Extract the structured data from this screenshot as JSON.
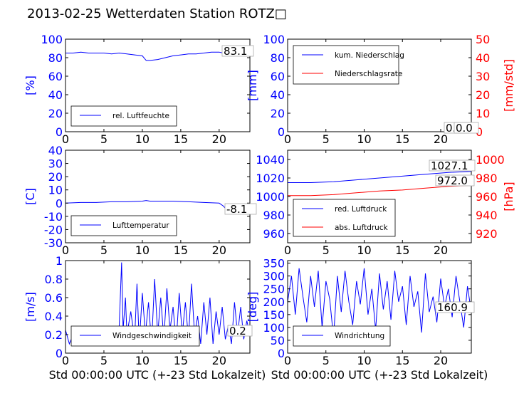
{
  "figure": {
    "title": "2013-02-25 Wetterdaten Station ROTZ",
    "title_glyph": "□",
    "colors": {
      "primary": "#0000ff",
      "secondary": "#ff0000",
      "axis": "#000000"
    },
    "xlabel": "Std 00:00:00 UTC (+-23 Std Lokalzeit)"
  },
  "chart_data": [
    {
      "id": "humidity",
      "type": "line",
      "ylabel": "[%]",
      "ylim": [
        0,
        100
      ],
      "yticks": [
        0,
        20,
        40,
        60,
        80,
        100
      ],
      "xlim": [
        0,
        24
      ],
      "xticks": [
        0,
        5,
        10,
        15,
        20
      ],
      "series": [
        {
          "name": "rel. Luftfeuchte",
          "color": "#0000ff",
          "x": [
            0,
            1,
            2,
            3,
            4,
            5,
            6,
            7,
            8,
            9,
            10,
            10.5,
            11,
            12,
            13,
            14,
            15,
            16,
            17,
            18,
            19,
            20,
            20.5,
            21,
            22,
            23,
            24
          ],
          "y": [
            85,
            85,
            86,
            85,
            85,
            85,
            84,
            85,
            84,
            83,
            82,
            77,
            77,
            78,
            80,
            82,
            83,
            84,
            84,
            85,
            86,
            86,
            85,
            83,
            83,
            83,
            83
          ]
        }
      ],
      "legend_loc": "lower left",
      "current_value": "83.1"
    },
    {
      "id": "precipitation",
      "type": "line",
      "ylabel": "[mm]",
      "ylabel_right": "[mm/std]",
      "ylim": [
        0,
        100
      ],
      "yticks": [
        0,
        20,
        40,
        60,
        80,
        100
      ],
      "ylim_right": [
        0,
        50
      ],
      "yticks_right": [
        0,
        10,
        20,
        30,
        40,
        50
      ],
      "xlim": [
        0,
        24
      ],
      "xticks": [
        0,
        5,
        10,
        15,
        20
      ],
      "series": [
        {
          "name": "kum. Niederschlag",
          "color": "#0000ff",
          "axis": "left",
          "x": [
            0,
            24
          ],
          "y": [
            0,
            0
          ]
        },
        {
          "name": "Niederschlagsrate",
          "color": "#ff0000",
          "axis": "right",
          "x": [
            0,
            24
          ],
          "y": [
            0,
            0
          ]
        }
      ],
      "legend_loc": "upper left",
      "current_value": "0.0",
      "current_value_right": "0.0"
    },
    {
      "id": "temperature",
      "type": "line",
      "ylabel": "[C]",
      "ylim": [
        -30,
        40
      ],
      "yticks": [
        -30,
        -20,
        -10,
        0,
        10,
        20,
        30,
        40
      ],
      "xlim": [
        0,
        24
      ],
      "xticks": [
        0,
        5,
        10,
        15,
        20
      ],
      "series": [
        {
          "name": "Lufttemperatur",
          "color": "#0000ff",
          "x": [
            0,
            2,
            4,
            6,
            8,
            10,
            10.5,
            11,
            12,
            14,
            16,
            18,
            20,
            20.5,
            21,
            22,
            23,
            24
          ],
          "y": [
            0,
            0.5,
            0.5,
            1,
            1,
            1.5,
            2,
            1.5,
            1.5,
            1.5,
            1,
            0.5,
            0,
            -2,
            -5,
            -7,
            -8,
            -8.1
          ]
        }
      ],
      "legend_loc": "lower left",
      "current_value": "-8.1"
    },
    {
      "id": "pressure",
      "type": "line",
      "ylabel_right": "[hPa]",
      "ylim": [
        950,
        1050
      ],
      "yticks": [
        960,
        980,
        1000,
        1020,
        1040
      ],
      "ylim_right": [
        910,
        1010
      ],
      "yticks_right": [
        920,
        940,
        960,
        980,
        1000
      ],
      "xlim": [
        0,
        24
      ],
      "xticks": [
        0,
        5,
        10,
        15,
        20
      ],
      "series": [
        {
          "name": "red. Luftdruck",
          "color": "#0000ff",
          "axis": "left",
          "x": [
            0,
            3,
            6,
            9,
            12,
            15,
            18,
            21,
            24
          ],
          "y": [
            1015,
            1015,
            1016,
            1018,
            1020,
            1022,
            1024,
            1026,
            1027.1
          ]
        },
        {
          "name": "abs. Luftdruck",
          "color": "#ff0000",
          "axis": "right",
          "x": [
            0,
            3,
            6,
            9,
            12,
            15,
            18,
            21,
            24
          ],
          "y": [
            961,
            961,
            962,
            964,
            966,
            967,
            969,
            971,
            972
          ]
        }
      ],
      "legend_loc": "lower left",
      "current_value": "1027.1",
      "current_value_right": "972.0"
    },
    {
      "id": "wind_speed",
      "type": "line",
      "ylabel": "[m/s]",
      "ylim": [
        0,
        1.0
      ],
      "yticks": [
        0.0,
        0.2,
        0.4,
        0.6,
        0.8,
        1.0
      ],
      "xlim": [
        0,
        24
      ],
      "xticks": [
        0,
        5,
        10,
        15,
        20
      ],
      "series": [
        {
          "name": "Windgeschwindigkeit",
          "color": "#0000ff",
          "x": [
            0,
            0.5,
            1,
            1.5,
            2,
            2.5,
            3,
            3.5,
            4,
            4.5,
            5,
            5.5,
            6,
            6.5,
            7,
            7.3,
            7.5,
            7.8,
            8,
            8.5,
            9,
            9.3,
            9.6,
            10,
            10.4,
            10.8,
            11.2,
            11.6,
            12,
            12.4,
            12.8,
            13.2,
            13.6,
            14,
            14.4,
            14.8,
            15.2,
            15.6,
            16,
            16.4,
            16.8,
            17.2,
            17.6,
            18,
            18.4,
            18.8,
            19.2,
            19.6,
            20,
            20.4,
            20.8,
            21.2,
            21.6,
            22,
            22.4,
            22.8,
            23.2,
            23.6,
            24
          ],
          "y": [
            0.25,
            0.1,
            0.2,
            0.15,
            0.22,
            0.12,
            0.2,
            0.1,
            0.18,
            0.1,
            0.2,
            0.12,
            0.15,
            0.1,
            0.3,
            0.98,
            0.25,
            0.6,
            0.2,
            0.45,
            0.15,
            0.75,
            0.1,
            0.65,
            0.2,
            0.55,
            0.1,
            0.8,
            0.2,
            0.6,
            0.15,
            0.7,
            0.25,
            0.5,
            0.1,
            0.65,
            0.2,
            0.55,
            0.15,
            0.75,
            0.2,
            0.4,
            0.1,
            0.55,
            0.2,
            0.6,
            0.1,
            0.45,
            0.2,
            0.5,
            0.15,
            0.3,
            0.1,
            0.55,
            0.2,
            0.5,
            0.15,
            0.35,
            0.2
          ]
        }
      ],
      "legend_loc": "lower left",
      "current_value": "0.2"
    },
    {
      "id": "wind_direction",
      "type": "line",
      "ylabel": "[deg]",
      "ylim": [
        0,
        360
      ],
      "yticks": [
        0,
        50,
        100,
        150,
        200,
        250,
        300,
        350
      ],
      "xlim": [
        0,
        24
      ],
      "xticks": [
        0,
        5,
        10,
        15,
        20
      ],
      "series": [
        {
          "name": "Windrichtung",
          "color": "#0000ff",
          "x": [
            0,
            0.5,
            1,
            1.5,
            2,
            2.5,
            3,
            3.5,
            4,
            4.5,
            5,
            5.5,
            6,
            6.5,
            7,
            7.5,
            8,
            8.5,
            9,
            9.5,
            10,
            10.5,
            11,
            11.5,
            12,
            12.5,
            13,
            13.5,
            14,
            14.5,
            15,
            15.5,
            16,
            16.5,
            17,
            17.5,
            18,
            18.5,
            19,
            19.5,
            20,
            20.5,
            21,
            21.5,
            22,
            22.5,
            23,
            23.5,
            24
          ],
          "y": [
            200,
            300,
            150,
            330,
            220,
            120,
            300,
            180,
            320,
            100,
            280,
            210,
            60,
            300,
            160,
            320,
            200,
            110,
            280,
            190,
            330,
            150,
            250,
            90,
            310,
            170,
            280,
            130,
            320,
            200,
            260,
            110,
            300,
            180,
            240,
            80,
            310,
            160,
            220,
            120,
            290,
            180,
            250,
            140,
            300,
            200,
            100,
            260,
            160
          ]
        }
      ],
      "legend_loc": "lower left",
      "current_value": "160.9"
    }
  ]
}
